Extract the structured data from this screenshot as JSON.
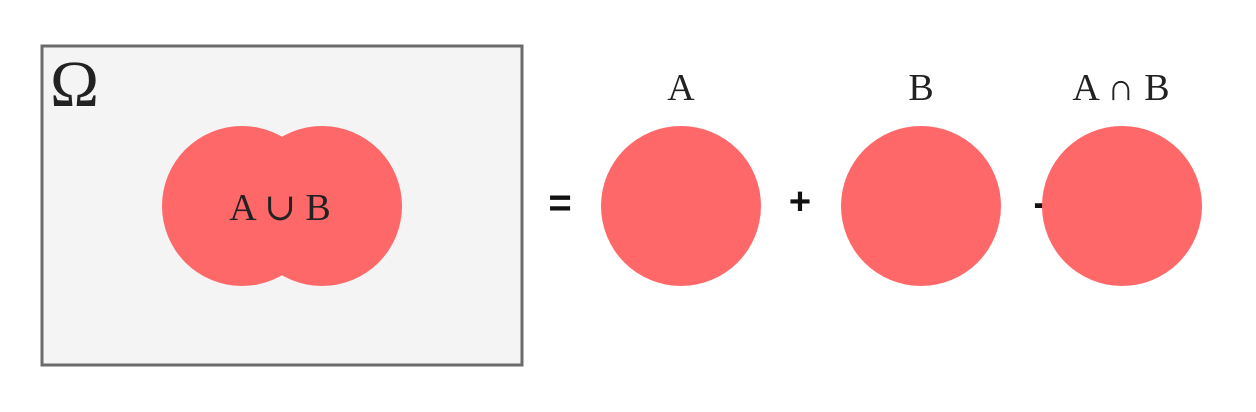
{
  "universe": {
    "symbol": "Ω"
  },
  "union_label": "A ∪ B",
  "operators": {
    "equals": "=",
    "plus": "+",
    "minus": "-"
  },
  "terms": {
    "a_label": "A",
    "b_label": "B",
    "intersection_label": "A ∩ B"
  },
  "colors": {
    "set_fill": "#ff6868",
    "universe_fill": "#f4f4f4",
    "universe_border": "#6b6b6b",
    "text": "#222222"
  }
}
